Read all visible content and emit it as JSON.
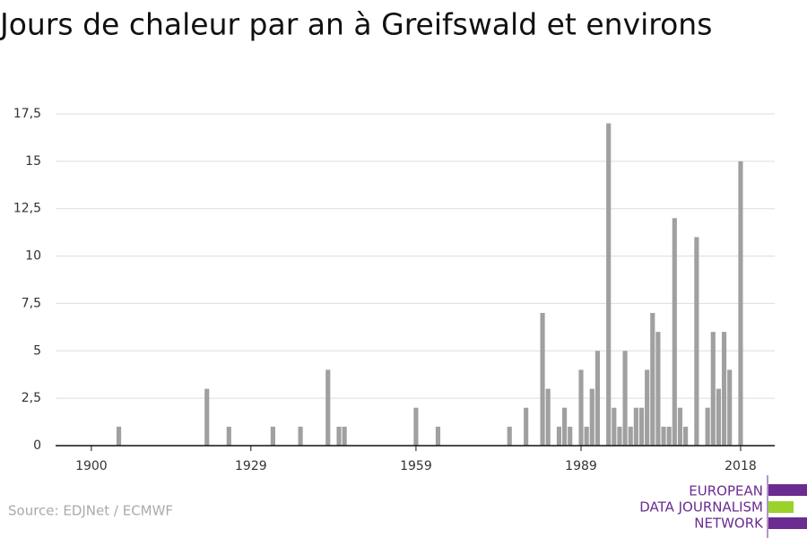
{
  "chart_data": {
    "type": "bar",
    "title": "Jours de chaleur par an à Greifswald et environs",
    "x": [
      1905,
      1921,
      1925,
      1933,
      1938,
      1943,
      1945,
      1946,
      1959,
      1963,
      1976,
      1979,
      1982,
      1983,
      1985,
      1986,
      1987,
      1989,
      1990,
      1991,
      1992,
      1994,
      1995,
      1996,
      1997,
      1998,
      1999,
      2000,
      2001,
      2002,
      2003,
      2004,
      2005,
      2006,
      2007,
      2008,
      2010,
      2012,
      2013,
      2014,
      2015,
      2016,
      2018
    ],
    "values": [
      1,
      3,
      1,
      1,
      1,
      4,
      1,
      1,
      2,
      1,
      1,
      2,
      7,
      3,
      1,
      2,
      1,
      4,
      1,
      3,
      5,
      17,
      2,
      1,
      5,
      1,
      2,
      2,
      4,
      7,
      6,
      1,
      1,
      12,
      2,
      1,
      11,
      2,
      6,
      3,
      6,
      4,
      15
    ],
    "color": "#a0a0a0",
    "xlim": [
      1893.5,
      2024.2
    ],
    "xticks": [
      1900,
      1929,
      1959,
      1989,
      2018
    ],
    "ylim": [
      0,
      17.5
    ],
    "yticks": [
      0,
      {
        "value": 2.5,
        "label": "2,5"
      },
      5,
      {
        "value": 7.5,
        "label": "7,5"
      },
      10,
      {
        "value": 12.5,
        "label": "12,5"
      },
      15,
      {
        "value": 17.5,
        "label": "17,5"
      }
    ],
    "grid": true,
    "source": "Source: EDJNet / ECMWF",
    "logo": [
      "EUROPEAN",
      "DATA JOURNALISM",
      "NETWORK"
    ]
  }
}
